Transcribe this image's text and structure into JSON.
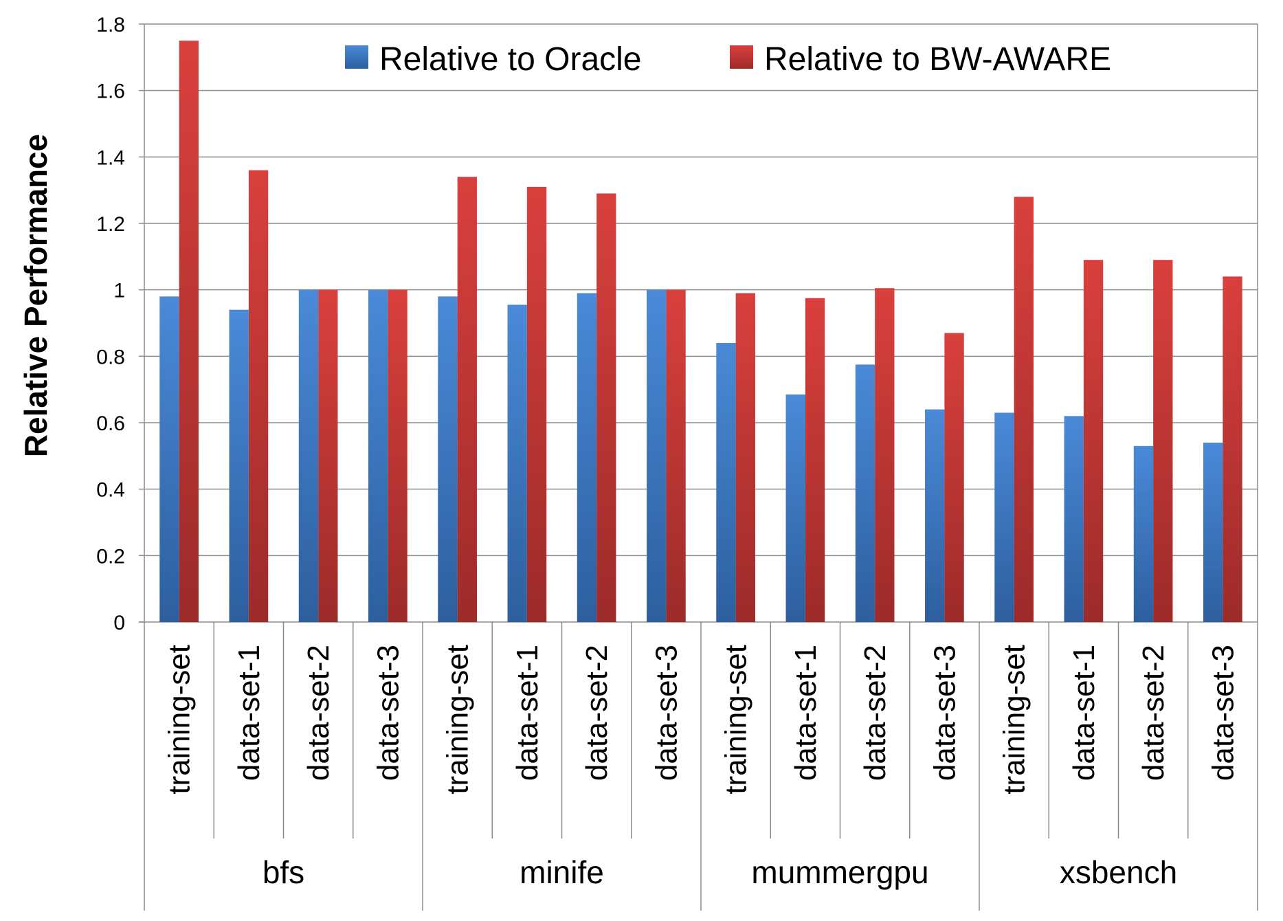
{
  "chart_data": {
    "type": "bar",
    "title": "",
    "xlabel": "",
    "ylabel": "Relative Performance",
    "ylim": [
      0,
      1.8
    ],
    "yticks": [
      "0",
      "0.2",
      "0.4",
      "0.6",
      "0.8",
      "1",
      "1.2",
      "1.4",
      "1.6",
      "1.8"
    ],
    "grid": true,
    "legend_position": "top",
    "groups": [
      {
        "name": "bfs",
        "categories": [
          "training-set",
          "data-set-1",
          "data-set-2",
          "data-set-3"
        ]
      },
      {
        "name": "minife",
        "categories": [
          "training-set",
          "data-set-1",
          "data-set-2",
          "data-set-3"
        ]
      },
      {
        "name": "mummergpu",
        "categories": [
          "training-set",
          "data-set-1",
          "data-set-2",
          "data-set-3"
        ]
      },
      {
        "name": "xsbench",
        "categories": [
          "training-set",
          "data-set-1",
          "data-set-2",
          "data-set-3"
        ]
      }
    ],
    "series": [
      {
        "name": "Relative to Oracle",
        "color": "#3f7fcf",
        "values": [
          0.98,
          0.94,
          1.0,
          1.0,
          0.98,
          0.955,
          0.99,
          1.0,
          0.84,
          0.685,
          0.775,
          0.64,
          0.63,
          0.62,
          0.53,
          0.54
        ]
      },
      {
        "name": "Relative to BW-AWARE",
        "color": "#d33c39",
        "values": [
          1.75,
          1.36,
          1.0,
          1.0,
          1.34,
          1.31,
          1.29,
          1.0,
          0.99,
          0.975,
          1.005,
          0.87,
          1.28,
          1.09,
          1.09,
          1.04
        ]
      }
    ]
  }
}
